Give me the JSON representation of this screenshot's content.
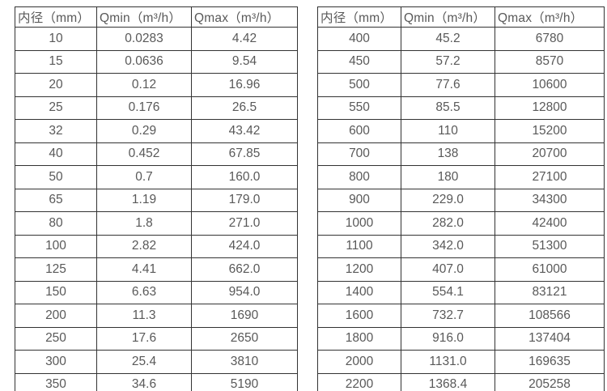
{
  "page": {
    "background_color": "#ffffff",
    "text_color": "#595959",
    "border_color": "#333333"
  },
  "tables": [
    {
      "id": "small-diameters",
      "columns": [
        "内径（mm）",
        "Qmin（m³/h）",
        "Qmax（m³/h）"
      ],
      "rows": [
        [
          "10",
          "0.0283",
          "4.42"
        ],
        [
          "15",
          "0.0636",
          "9.54"
        ],
        [
          "20",
          "0.12",
          "16.96"
        ],
        [
          "25",
          "0.176",
          "26.5"
        ],
        [
          "32",
          "0.29",
          "43.42"
        ],
        [
          "40",
          "0.452",
          "67.85"
        ],
        [
          "50",
          "0.7",
          "160.0"
        ],
        [
          "65",
          "1.19",
          "179.0"
        ],
        [
          "80",
          "1.8",
          "271.0"
        ],
        [
          "100",
          "2.82",
          "424.0"
        ],
        [
          "125",
          "4.41",
          "662.0"
        ],
        [
          "150",
          "6.63",
          "954.0"
        ],
        [
          "200",
          "11.3",
          "1690"
        ],
        [
          "250",
          "17.6",
          "2650"
        ],
        [
          "300",
          "25.4",
          "3810"
        ],
        [
          "350",
          "34.6",
          "5190"
        ]
      ]
    },
    {
      "id": "large-diameters",
      "columns": [
        "内径（mm）",
        "Qmin（m³/h）",
        "Qmax（m³/h）"
      ],
      "rows": [
        [
          "400",
          "45.2",
          "6780"
        ],
        [
          "450",
          "57.2",
          "8570"
        ],
        [
          "500",
          "77.6",
          "10600"
        ],
        [
          "550",
          "85.5",
          "12800"
        ],
        [
          "600",
          "110",
          "15200"
        ],
        [
          "700",
          "138",
          "20700"
        ],
        [
          "800",
          "180",
          "27100"
        ],
        [
          "900",
          "229.0",
          "34300"
        ],
        [
          "1000",
          "282.0",
          "42400"
        ],
        [
          "1100",
          "342.0",
          "51300"
        ],
        [
          "1200",
          "407.0",
          "61000"
        ],
        [
          "1400",
          "554.1",
          "83121"
        ],
        [
          "1600",
          "732.7",
          "108566"
        ],
        [
          "1800",
          "916.0",
          "137404"
        ],
        [
          "2000",
          "1131.0",
          "169635"
        ],
        [
          "2200",
          "1368.4",
          "205258"
        ]
      ]
    }
  ]
}
